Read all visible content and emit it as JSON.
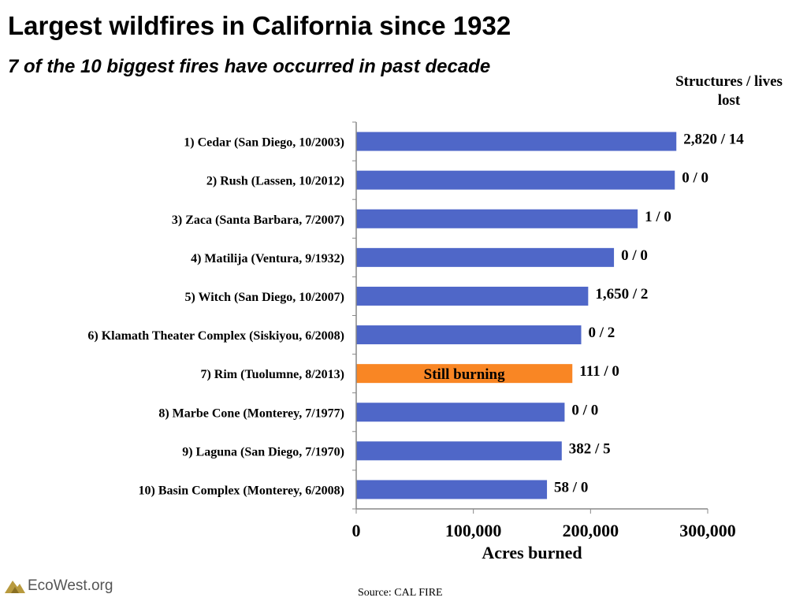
{
  "title": "Largest wildfires in California since 1932",
  "subtitle": "7 of the 10 biggest fires have occurred in past decade",
  "source": "Source:  CAL FIRE",
  "brand": "EcoWest.org",
  "colors": {
    "bar": "#4F67C8",
    "highlight": "#F98624",
    "axis": "#888888"
  },
  "chart_data": {
    "type": "bar",
    "orientation": "horizontal",
    "title": "Largest wildfires in California since 1932",
    "subtitle": "7 of the 10 biggest fires have occurred in past decade",
    "xlabel": "Acres burned",
    "ylabel": "",
    "xlim": [
      0,
      300000
    ],
    "x_ticks": [
      0,
      100000,
      200000,
      300000
    ],
    "x_tick_labels": [
      "0",
      "100,000",
      "200,000",
      "300,000"
    ],
    "annotation_header": "Structures / lives lost",
    "grid": false,
    "categories": [
      "1) Cedar (San Diego, 10/2003)",
      "2) Rush (Lassen, 10/2012)",
      "3) Zaca (Santa Barbara, 7/2007)",
      "4) Matilija (Ventura, 9/1932)",
      "5) Witch (San Diego, 10/2007)",
      "6) Klamath Theater Complex (Siskiyou, 6/2008)",
      "7) Rim (Tuolumne, 8/2013)",
      "8) Marbe Cone (Monterey, 7/1977)",
      "9) Laguna (San Diego, 7/1970)",
      "10) Basin Complex (Monterey, 6/2008)"
    ],
    "values": [
      273246,
      271911,
      240207,
      220000,
      197990,
      192038,
      184481,
      177866,
      175425,
      162818
    ],
    "annotations": [
      "2,820 / 14",
      "0 / 0",
      "1 / 0",
      "0 / 0",
      "1,650 / 2",
      "0 / 2",
      "111 / 0",
      "0 / 0",
      "382 / 5",
      "58 / 0"
    ],
    "highlight_index": 6,
    "highlight_label": "Still burning"
  }
}
